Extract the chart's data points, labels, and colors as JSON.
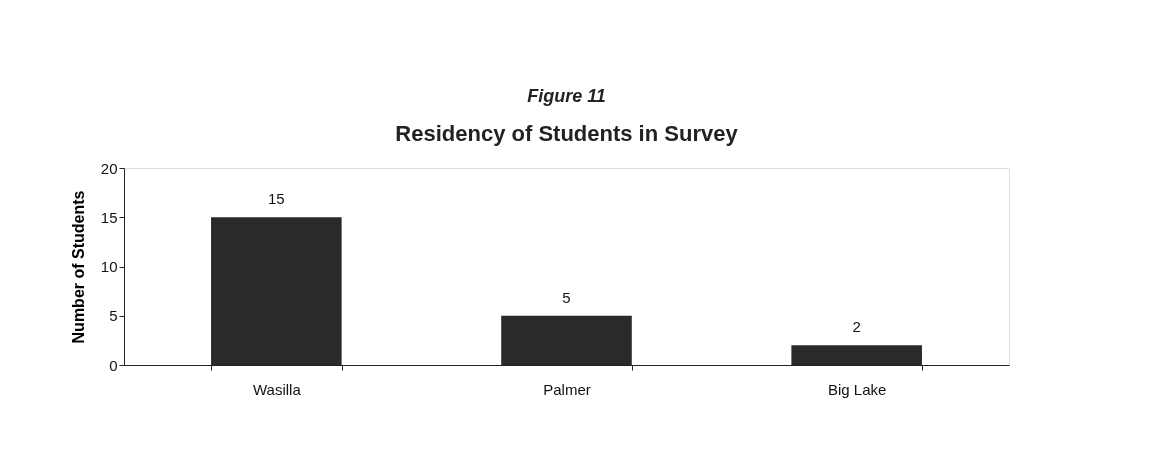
{
  "chart_data": {
    "type": "bar",
    "title": "Figure 11",
    "subtitle": "Residency of Students in Survey",
    "ylabel": "Number of Students",
    "categories": [
      "Wasilla",
      "Palmer",
      "Big Lake"
    ],
    "values": [
      15,
      5,
      2
    ],
    "color": "#2a2a2a",
    "ylim": [
      0,
      20
    ],
    "yticks": [
      0,
      5,
      10,
      15,
      20
    ],
    "grid": false,
    "data_labels": true
  }
}
